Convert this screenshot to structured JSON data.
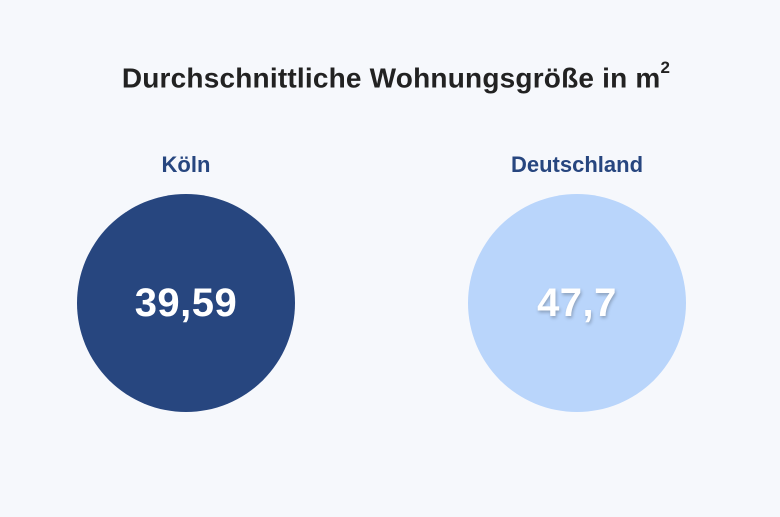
{
  "chart_data": {
    "type": "bubble",
    "title": "Durchschnittliche Wohnungsgröße in m",
    "title_superscript": "2",
    "categories": [
      "Köln",
      "Deutschland"
    ],
    "values": [
      39.59,
      47.7
    ],
    "value_labels": [
      "39,59",
      "47,7"
    ],
    "colors": [
      "#27467f",
      "#b9d5fb"
    ]
  }
}
